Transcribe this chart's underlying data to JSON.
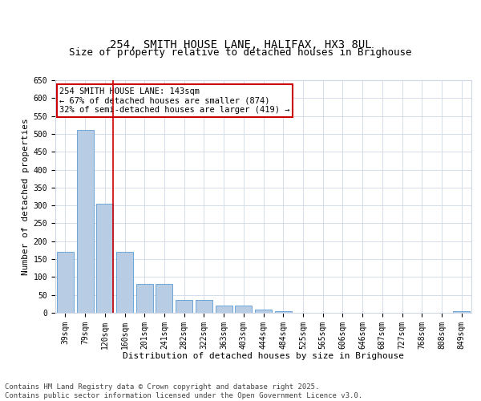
{
  "title": "254, SMITH HOUSE LANE, HALIFAX, HX3 8UL",
  "subtitle": "Size of property relative to detached houses in Brighouse",
  "xlabel": "Distribution of detached houses by size in Brighouse",
  "ylabel": "Number of detached properties",
  "categories": [
    "39sqm",
    "79sqm",
    "120sqm",
    "160sqm",
    "201sqm",
    "241sqm",
    "282sqm",
    "322sqm",
    "363sqm",
    "403sqm",
    "444sqm",
    "484sqm",
    "525sqm",
    "565sqm",
    "606sqm",
    "646sqm",
    "687sqm",
    "727sqm",
    "768sqm",
    "808sqm",
    "849sqm"
  ],
  "values": [
    170,
    510,
    305,
    170,
    80,
    80,
    35,
    35,
    20,
    20,
    8,
    5,
    0,
    0,
    0,
    0,
    0,
    0,
    0,
    0,
    5
  ],
  "bar_color": "#b8cce4",
  "bar_edge_color": "#5b9bd5",
  "vline_x_index": 2,
  "vline_color": "#cc0000",
  "annotation_text": "254 SMITH HOUSE LANE: 143sqm\n← 67% of detached houses are smaller (874)\n32% of semi-detached houses are larger (419) →",
  "annotation_box_color": "#cc0000",
  "ylim": [
    0,
    650
  ],
  "yticks": [
    0,
    50,
    100,
    150,
    200,
    250,
    300,
    350,
    400,
    450,
    500,
    550,
    600,
    650
  ],
  "background_color": "#ffffff",
  "grid_color": "#d0d8e8",
  "footer_text": "Contains HM Land Registry data © Crown copyright and database right 2025.\nContains public sector information licensed under the Open Government Licence v3.0.",
  "title_fontsize": 10,
  "subtitle_fontsize": 9,
  "axis_label_fontsize": 8,
  "tick_fontsize": 7,
  "annotation_fontsize": 7.5,
  "footer_fontsize": 6.5
}
